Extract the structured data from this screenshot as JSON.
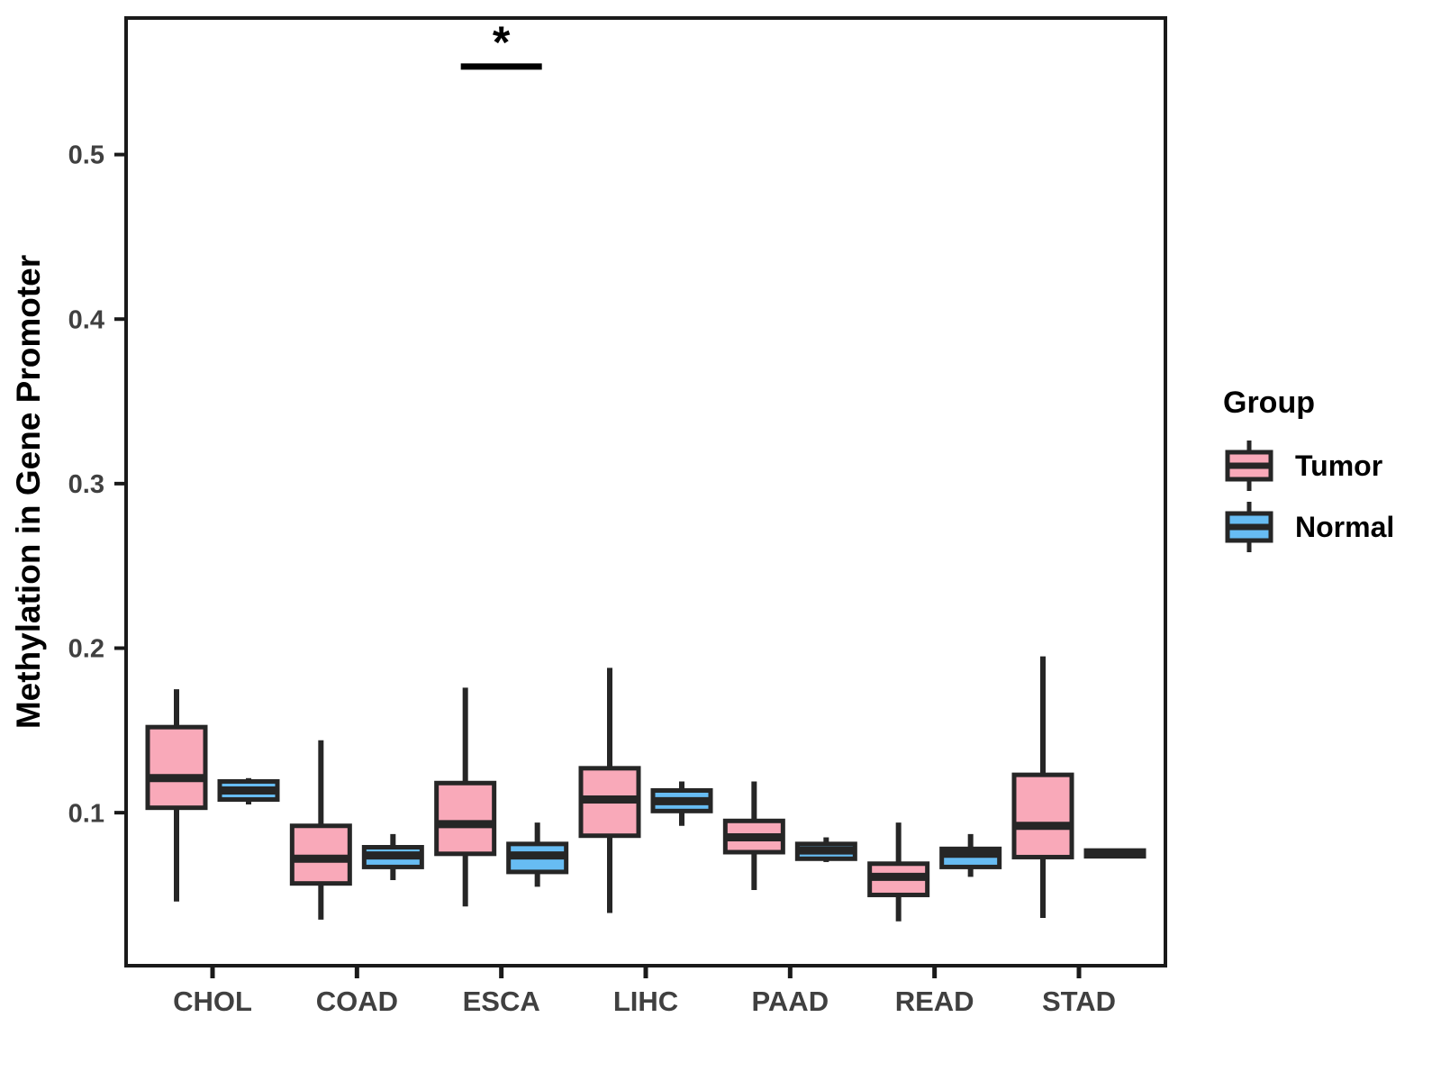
{
  "figure": {
    "y_axis_title": "Methylation in Gene Promoter",
    "legend": {
      "title": "Group",
      "items": [
        {
          "label": "Tumor",
          "color": "#F9A9B9"
        },
        {
          "label": "Normal",
          "color": "#67BCF3"
        }
      ]
    },
    "colors": {
      "box_stroke": "#262626",
      "panel_border": "#1A1A1A",
      "tick_text": "#404040",
      "background": "#FFFFFF"
    }
  },
  "chart_data": {
    "type": "boxplot",
    "title": "",
    "xlabel": "",
    "ylabel": "Methylation in Gene Promoter",
    "categories": [
      "CHOL",
      "COAD",
      "ESCA",
      "LIHC",
      "PAAD",
      "READ",
      "STAD"
    ],
    "series": [
      {
        "name": "Tumor",
        "color": "#F9A9B9",
        "boxes": [
          {
            "low": 0.046,
            "q1": 0.103,
            "median": 0.121,
            "q3": 0.152,
            "high": 0.175
          },
          {
            "low": 0.035,
            "q1": 0.057,
            "median": 0.072,
            "q3": 0.092,
            "high": 0.144
          },
          {
            "low": 0.043,
            "q1": 0.075,
            "median": 0.093,
            "q3": 0.118,
            "high": 0.176
          },
          {
            "low": 0.039,
            "q1": 0.086,
            "median": 0.108,
            "q3": 0.127,
            "high": 0.188
          },
          {
            "low": 0.053,
            "q1": 0.076,
            "median": 0.085,
            "q3": 0.095,
            "high": 0.119
          },
          {
            "low": 0.034,
            "q1": 0.05,
            "median": 0.061,
            "q3": 0.069,
            "high": 0.094
          },
          {
            "low": 0.036,
            "q1": 0.073,
            "median": 0.092,
            "q3": 0.123,
            "high": 0.195
          }
        ]
      },
      {
        "name": "Normal",
        "color": "#67BCF3",
        "boxes": [
          {
            "low": 0.105,
            "q1": 0.108,
            "median": 0.1135,
            "q3": 0.119,
            "high": 0.121
          },
          {
            "low": 0.059,
            "q1": 0.067,
            "median": 0.074,
            "q3": 0.079,
            "high": 0.087
          },
          {
            "low": 0.055,
            "q1": 0.064,
            "median": 0.074,
            "q3": 0.081,
            "high": 0.094
          },
          {
            "low": 0.092,
            "q1": 0.101,
            "median": 0.107,
            "q3": 0.1135,
            "high": 0.119
          },
          {
            "low": 0.07,
            "q1": 0.072,
            "median": 0.077,
            "q3": 0.081,
            "high": 0.085
          },
          {
            "low": 0.061,
            "q1": 0.067,
            "median": 0.075,
            "q3": 0.078,
            "high": 0.087
          },
          {
            "low": 0.073,
            "q1": 0.0735,
            "median": 0.0755,
            "q3": 0.077,
            "high": 0.0775
          }
        ]
      }
    ],
    "yticks": [
      0.1,
      0.2,
      0.3,
      0.4,
      0.5
    ],
    "ytick_labels": [
      "0.1",
      "0.2",
      "0.3",
      "0.4",
      "0.5"
    ],
    "ylim": [
      0.007,
      0.583
    ],
    "grid": false,
    "legend_position": "right",
    "annotations": [
      {
        "type": "significance",
        "category": "ESCA",
        "label": "*",
        "bar_y": 0.5535
      }
    ]
  }
}
